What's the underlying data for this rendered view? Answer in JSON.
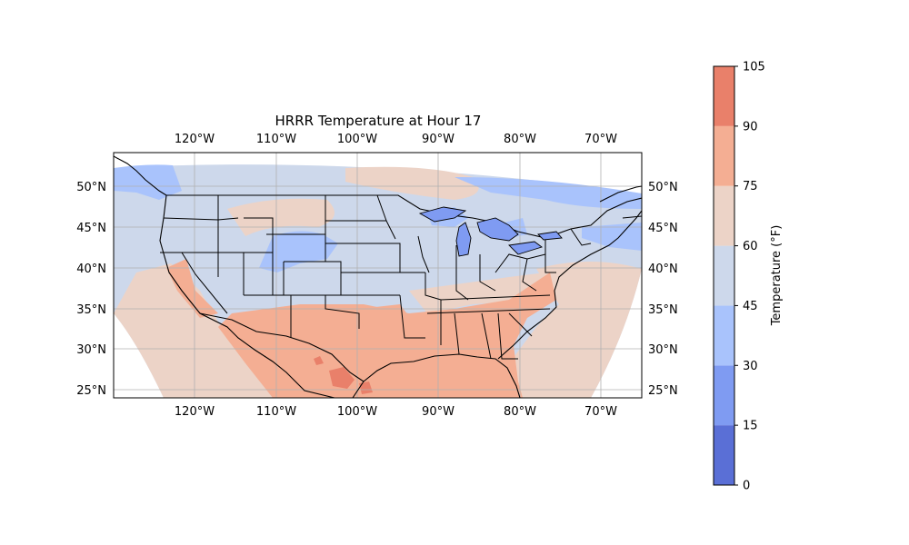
{
  "title": "HRRR Temperature at Hour 17",
  "longitude_ticks": [
    "120°W",
    "110°W",
    "100°W",
    "90°W",
    "80°W",
    "70°W"
  ],
  "latitude_ticks": [
    "50°N",
    "45°N",
    "40°N",
    "35°N",
    "30°N",
    "25°N"
  ],
  "colorbar": {
    "label": "Temperature (°F)",
    "ticks": [
      "0",
      "15",
      "30",
      "45",
      "60",
      "75",
      "90",
      "105"
    ],
    "bands": [
      {
        "from": 0,
        "to": 15,
        "color": "#5a6fd6"
      },
      {
        "from": 15,
        "to": 30,
        "color": "#7f9bf2"
      },
      {
        "from": 30,
        "to": 45,
        "color": "#a9c3fc"
      },
      {
        "from": 45,
        "to": 60,
        "color": "#cdd8eb"
      },
      {
        "from": 60,
        "to": 75,
        "color": "#ecd3c7"
      },
      {
        "from": 75,
        "to": 90,
        "color": "#f4ae93"
      },
      {
        "from": 90,
        "to": 105,
        "color": "#e9806a"
      }
    ]
  },
  "map": {
    "projection": "PlateCarree",
    "lon_range": [
      -130,
      -65
    ],
    "lat_range": [
      24,
      54
    ],
    "gridlines": true,
    "features": [
      "coastlines",
      "country borders",
      "state borders"
    ]
  }
}
